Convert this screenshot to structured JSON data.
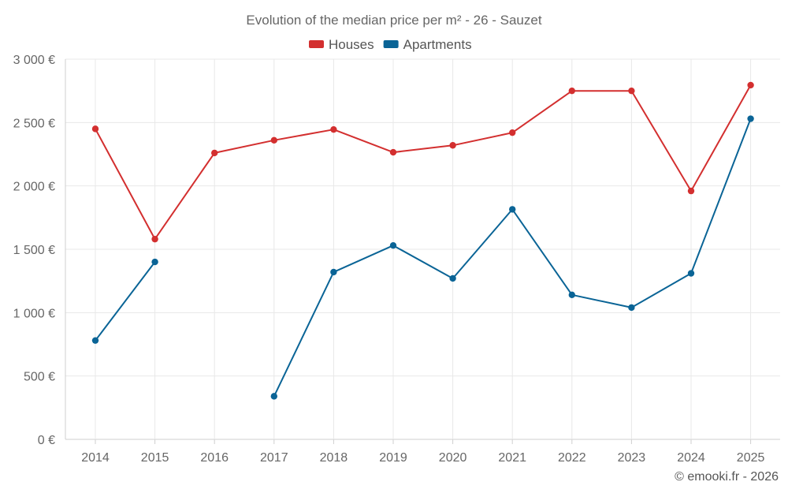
{
  "chart_data": {
    "type": "line",
    "title": "Evolution of the median price per m² - 26 - Sauzet",
    "categories": [
      "2014",
      "2015",
      "2016",
      "2017",
      "2018",
      "2019",
      "2020",
      "2021",
      "2022",
      "2023",
      "2024",
      "2025"
    ],
    "series": [
      {
        "name": "Houses",
        "color": "#d32f2f",
        "values": [
          2450,
          1580,
          2260,
          2360,
          2445,
          2265,
          2320,
          2420,
          2750,
          2750,
          1960,
          2795
        ]
      },
      {
        "name": "Apartments",
        "color": "#0a6496",
        "values": [
          780,
          1400,
          null,
          340,
          1320,
          1530,
          1270,
          1815,
          1140,
          1040,
          1310,
          2530
        ]
      }
    ],
    "ylim": [
      0,
      3000
    ],
    "yticks": [
      0,
      500,
      1000,
      1500,
      2000,
      2500,
      3000
    ],
    "ytick_labels": [
      "0 €",
      "500 €",
      "1 000 €",
      "1 500 €",
      "2 000 €",
      "2 500 €",
      "3 000 €"
    ],
    "xlabel": "",
    "ylabel": "",
    "legend_position": "top-center",
    "grid": true
  },
  "footer": {
    "copyright": "© emooki.fr - 2026"
  }
}
